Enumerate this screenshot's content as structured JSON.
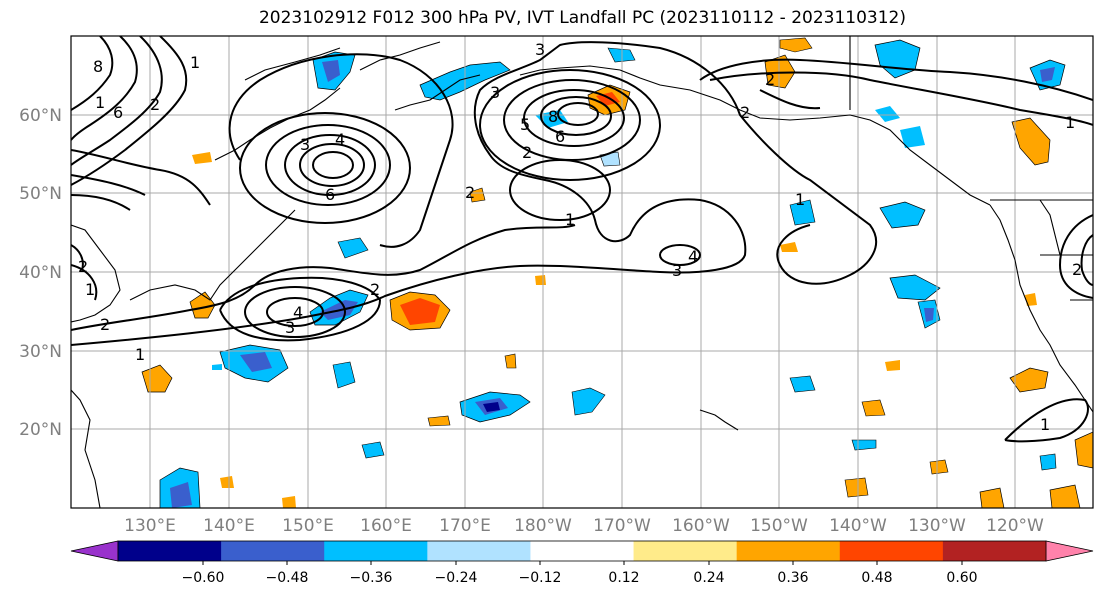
{
  "title": "2023102912 F012 300 hPa PV, IVT Landfall PC (2023110112 - 2023110312)",
  "lat_labels": [
    "60°N",
    "50°N",
    "40°N",
    "30°N",
    "20°N"
  ],
  "lon_labels": [
    "130°E",
    "140°E",
    "150°E",
    "160°E",
    "170°E",
    "180°W",
    "170°W",
    "160°W",
    "150°W",
    "140°W",
    "130°W",
    "120°W"
  ],
  "colorbar": {
    "ticks": [
      "−0.60",
      "−0.48",
      "−0.36",
      "−0.24",
      "−0.12",
      "0.12",
      "0.24",
      "0.36",
      "0.48",
      "0.60"
    ],
    "colors": [
      "#9932cc",
      "#00008b",
      "#3a5fcd",
      "#00bfff",
      "#b0e2ff",
      "#ffffff",
      "#ffeb8a",
      "#ffa500",
      "#ff4500",
      "#b22222",
      "#ff82ab"
    ]
  },
  "contour_labels": {
    "c1": "8",
    "c2": "1",
    "c3": "2",
    "c4": "6",
    "c5": "1",
    "c6": "2",
    "c7": "3",
    "c8": "3",
    "c9": "4",
    "c10": "6",
    "c11": "3",
    "c12": "8",
    "c13": "5",
    "c14": "6",
    "c15": "2",
    "c16": "1",
    "c17": "3",
    "c18": "4",
    "c19": "2",
    "c20": "1",
    "c21": "2",
    "c22": "1",
    "c23": "4",
    "c24": "3",
    "c25": "2",
    "c26": "1",
    "c27": "2",
    "c28": "1",
    "c29": "2",
    "c30": "2",
    "c31": "1"
  }
}
